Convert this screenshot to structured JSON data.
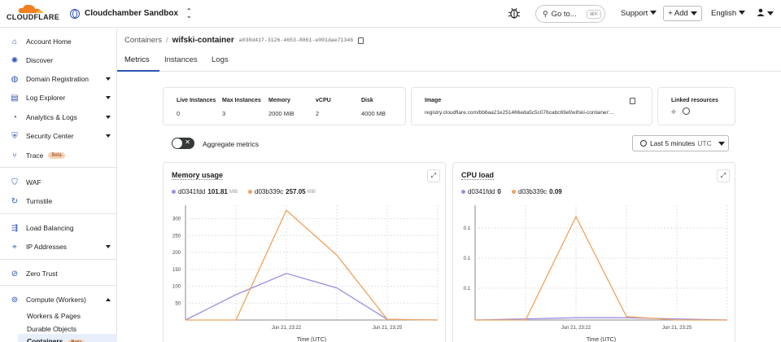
{
  "topbar": {
    "logo_text": "CLOUDFLARE",
    "account_name": "Cloudchamber Sandbox",
    "goto_label": "Go to...",
    "goto_shortcut": "⌘K",
    "support_label": "Support",
    "add_label": "+ Add",
    "language_label": "English"
  },
  "sidebar": {
    "items": [
      {
        "label": "Account Home",
        "icon": "home-icon"
      },
      {
        "label": "Discover",
        "icon": "lightbulb-icon"
      },
      {
        "label": "Domain Registration",
        "icon": "globe-icon",
        "expandable": true
      },
      {
        "label": "Log Explorer",
        "icon": "log-icon",
        "expandable": true
      },
      {
        "label": "Analytics & Logs",
        "icon": "analytics-icon",
        "expandable": true
      },
      {
        "label": "Security Center",
        "icon": "security-icon",
        "expandable": true
      },
      {
        "label": "Trace",
        "icon": "trace-icon",
        "badge": "Beta"
      },
      {
        "label": "WAF",
        "icon": "shield-icon"
      },
      {
        "label": "Turnstile",
        "icon": "turnstile-icon"
      },
      {
        "label": "Load Balancing",
        "icon": "load-balancing-icon"
      },
      {
        "label": "IP Addresses",
        "icon": "ip-icon",
        "expandable": true
      },
      {
        "label": "Zero Trust",
        "icon": "zero-trust-icon"
      },
      {
        "label": "Compute (Workers)",
        "icon": "compute-icon",
        "expanded": true
      }
    ],
    "subitems": [
      "Workers & Pages",
      "Durable Objects",
      "Containers"
    ],
    "containers_badge": "Beta"
  },
  "breadcrumb": {
    "parent": "Containers",
    "separator": "/",
    "current": "wifski-container",
    "id": "a038d417-3126-4653-8861-e001dae71346"
  },
  "tabs": [
    "Metrics",
    "Instances",
    "Logs"
  ],
  "stats": {
    "headers": [
      "Live Instances",
      "Max Instances",
      "Memory",
      "vCPU",
      "Disk"
    ],
    "values": [
      "0",
      "3",
      "2000 MiB",
      "2",
      "4000 MB"
    ]
  },
  "image_card": {
    "label": "Image",
    "value": "registry.cloudflare.com/bb6aa21e251466eda5c5c076cabc69ef/wifski-container:..."
  },
  "linked_resources": {
    "label": "Linked resources"
  },
  "aggregate_label": "Aggregate metrics",
  "time_range": {
    "label": "Last 5 minutes",
    "tz": "UTC"
  },
  "colors": {
    "purple": "#9b8fe0",
    "orange": "#f0a35e",
    "accent": "#2c54b4"
  },
  "memory_chart": {
    "title": "Memory usage",
    "xlabel": "Time (UTC)",
    "legend": [
      {
        "name": "d0341fdd",
        "value": "101.81",
        "unit": "MiB"
      },
      {
        "name": "d03b339c",
        "value": "257.05",
        "unit": "MiB"
      }
    ]
  },
  "cpu_chart": {
    "title": "CPU load",
    "xlabel": "Time (UTC)",
    "legend": [
      {
        "name": "d0341fdd",
        "value": "0",
        "unit": ""
      },
      {
        "name": "d03b339c",
        "value": "0.09",
        "unit": ""
      }
    ]
  },
  "chart_data": [
    {
      "type": "line",
      "title": "Memory usage",
      "xlabel": "Time (UTC)",
      "ylabel": "",
      "ylim": [
        0,
        340
      ],
      "yticks": [
        50,
        100,
        150,
        200,
        250,
        300
      ],
      "xtick_labels": [
        "Jun 21, 23:22",
        "Jun 21, 23:25"
      ],
      "x": [
        0,
        1,
        2,
        3,
        4,
        5
      ],
      "series": [
        {
          "name": "d0341fdd",
          "color": "#9b8fe0",
          "values": [
            0,
            75,
            138,
            95,
            2,
            0
          ]
        },
        {
          "name": "d03b339c",
          "color": "#f0a35e",
          "values": [
            0,
            0,
            325,
            192,
            2,
            0
          ]
        }
      ]
    },
    {
      "type": "line",
      "title": "CPU load",
      "xlabel": "Time (UTC)",
      "ylabel": "",
      "ylim": [
        0,
        0.1
      ],
      "ytick_labels": [
        "0.1",
        "0.1",
        "0.1"
      ],
      "xtick_labels": [
        "Jun 21, 23:22",
        "Jun 21, 23:25"
      ],
      "x": [
        0,
        1,
        2,
        3,
        4,
        5
      ],
      "series": [
        {
          "name": "d0341fdd",
          "color": "#9b8fe0",
          "values": [
            0,
            0.001,
            0.002,
            0.002,
            0.001,
            0
          ]
        },
        {
          "name": "d03b339c",
          "color": "#f0a35e",
          "values": [
            0,
            0,
            0.09,
            0.003,
            0,
            0
          ]
        }
      ]
    }
  ]
}
